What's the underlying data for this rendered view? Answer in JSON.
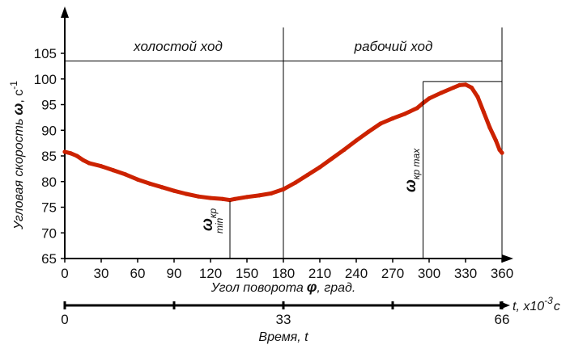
{
  "chart_data": {
    "type": "line",
    "ylabel_main": "Угловая скорость",
    "ylabel_symbol": "ω",
    "ylabel_unit": ", с",
    "ylabel_exp": "-1",
    "xlabel_main": "Угол поворота",
    "xlabel_symbol": "φ",
    "xlabel_unit": ", град.",
    "xlim": [
      0,
      360
    ],
    "ylim": [
      65,
      108
    ],
    "xticks": [
      0,
      30,
      60,
      90,
      120,
      150,
      180,
      210,
      240,
      270,
      300,
      330,
      360
    ],
    "yticks": [
      65,
      70,
      75,
      80,
      85,
      90,
      95,
      100,
      105
    ],
    "phase_idle": "холостой ход",
    "phase_work": "рабочий ход",
    "phase_line_y": 103.5,
    "phase_divider_x": 180,
    "annot_min": {
      "label": "ω",
      "sub": "кр",
      "sub2": "min",
      "x": 136,
      "y": 76.2
    },
    "annot_max": {
      "label": "ω",
      "sub": "кр max",
      "x": 295,
      "y": 99.5
    },
    "series": [
      {
        "color": "#cc2200",
        "x": [
          0,
          5,
          10,
          15,
          20,
          30,
          40,
          50,
          60,
          70,
          80,
          90,
          100,
          110,
          120,
          130,
          136,
          140,
          150,
          160,
          170,
          180,
          190,
          200,
          210,
          220,
          230,
          240,
          250,
          260,
          270,
          280,
          290,
          295,
          300,
          310,
          320,
          325,
          330,
          335,
          340,
          345,
          350,
          355,
          358,
          360
        ],
        "y": [
          85.8,
          85.5,
          85,
          84.2,
          83.6,
          83,
          82.2,
          81.4,
          80.4,
          79.6,
          78.9,
          78.2,
          77.6,
          77.1,
          76.8,
          76.6,
          76.4,
          76.6,
          77,
          77.3,
          77.7,
          78.5,
          79.8,
          81.3,
          82.8,
          84.5,
          86.2,
          88,
          89.7,
          91.3,
          92.3,
          93.2,
          94.3,
          95.3,
          96.2,
          97.3,
          98.3,
          98.8,
          98.9,
          98.3,
          96.5,
          93.5,
          90.5,
          88,
          86.2,
          85.6
        ]
      }
    ],
    "time_axis": {
      "label": "Время, t",
      "unit_prefix": "t, x10",
      "unit_exp": "-3",
      "unit_suffix": "c",
      "ticks": [
        {
          "value": "0",
          "pos": 0
        },
        {
          "value": "33",
          "pos": 180
        },
        {
          "value": "66",
          "pos": 360
        }
      ],
      "minor": [
        90,
        270
      ]
    }
  }
}
